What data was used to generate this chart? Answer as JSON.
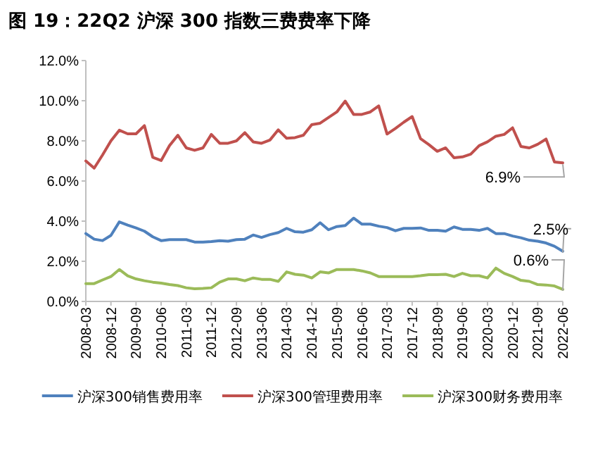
{
  "chart_data": {
    "type": "line",
    "title": "图 19：22Q2 沪深 300 指数三费费率下降",
    "categories": [
      "2008-03",
      null,
      null,
      "2008-12",
      null,
      null,
      "2009-09",
      null,
      null,
      "2010-06",
      null,
      null,
      "2011-03",
      null,
      null,
      "2011-12",
      null,
      null,
      "2012-09",
      null,
      null,
      "2013-06",
      null,
      null,
      "2014-03",
      null,
      null,
      "2014-12",
      null,
      null,
      "2015-09",
      null,
      null,
      "2016-06",
      null,
      null,
      "2017-03",
      null,
      null,
      "2017-12",
      null,
      null,
      "2018-09",
      null,
      null,
      "2019-06",
      null,
      null,
      "2020-03",
      null,
      null,
      "2020-12",
      null,
      null,
      "2021-09",
      null,
      null,
      "2022-06"
    ],
    "series": [
      {
        "name": "沪深300销售费用率",
        "color": "#4f81bd",
        "values": [
          3.38,
          3.1,
          3.03,
          3.29,
          3.96,
          3.8,
          3.66,
          3.5,
          3.22,
          3.03,
          3.08,
          3.08,
          3.08,
          2.96,
          2.96,
          2.98,
          3.03,
          3.0,
          3.08,
          3.1,
          3.31,
          3.19,
          3.33,
          3.43,
          3.64,
          3.47,
          3.45,
          3.57,
          3.92,
          3.57,
          3.73,
          3.78,
          4.15,
          3.85,
          3.85,
          3.75,
          3.68,
          3.52,
          3.64,
          3.64,
          3.66,
          3.54,
          3.54,
          3.5,
          3.71,
          3.59,
          3.59,
          3.54,
          3.64,
          3.38,
          3.38,
          3.26,
          3.17,
          3.05,
          3.0,
          2.91,
          2.75,
          2.5
        ]
      },
      {
        "name": "沪深300管理费用率",
        "color": "#c0504d",
        "values": [
          7.0,
          6.64,
          7.3,
          8.0,
          8.53,
          8.35,
          8.35,
          8.76,
          7.18,
          7.02,
          7.76,
          8.28,
          7.65,
          7.53,
          7.65,
          8.32,
          7.88,
          7.88,
          8.0,
          8.41,
          7.95,
          7.88,
          8.04,
          8.55,
          8.13,
          8.16,
          8.28,
          8.81,
          8.88,
          9.16,
          9.44,
          9.98,
          9.32,
          9.32,
          9.44,
          9.74,
          8.34,
          8.62,
          8.93,
          9.21,
          8.11,
          7.81,
          7.48,
          7.65,
          7.16,
          7.2,
          7.34,
          7.76,
          7.95,
          8.23,
          8.32,
          8.65,
          7.72,
          7.65,
          7.83,
          8.09,
          6.95,
          6.9
        ]
      },
      {
        "name": "沪深300财务费用率",
        "color": "#9bbb59",
        "values": [
          0.89,
          0.89,
          1.07,
          1.24,
          1.59,
          1.28,
          1.12,
          1.03,
          0.96,
          0.91,
          0.84,
          0.79,
          0.68,
          0.63,
          0.65,
          0.68,
          0.96,
          1.12,
          1.12,
          1.03,
          1.17,
          1.1,
          1.1,
          1.0,
          1.47,
          1.35,
          1.31,
          1.17,
          1.47,
          1.42,
          1.59,
          1.59,
          1.59,
          1.52,
          1.42,
          1.24,
          1.24,
          1.24,
          1.24,
          1.24,
          1.28,
          1.33,
          1.33,
          1.35,
          1.24,
          1.4,
          1.28,
          1.28,
          1.17,
          1.66,
          1.4,
          1.24,
          1.05,
          1.0,
          0.84,
          0.82,
          0.77,
          0.6
        ]
      }
    ],
    "ylim": [
      0,
      12
    ],
    "yticks": [
      {
        "value": 0,
        "label": "0.0%"
      },
      {
        "value": 2,
        "label": "2.0%"
      },
      {
        "value": 4,
        "label": "4.0%"
      },
      {
        "value": 6,
        "label": "6.0%"
      },
      {
        "value": 8,
        "label": "8.0%"
      },
      {
        "value": 10,
        "label": "10.0%"
      },
      {
        "value": 12,
        "label": "12.0%"
      }
    ],
    "grid": false,
    "legend": "bottom",
    "marker": "none",
    "line_style": "solid",
    "annotations": [
      {
        "text": "6.9%",
        "x": "2022-06",
        "y": 6.9
      },
      {
        "text": "2.5%",
        "x": "2022-06",
        "y": 2.5
      },
      {
        "text": "0.6%",
        "x": "2022-06",
        "y": 0.6
      }
    ]
  }
}
